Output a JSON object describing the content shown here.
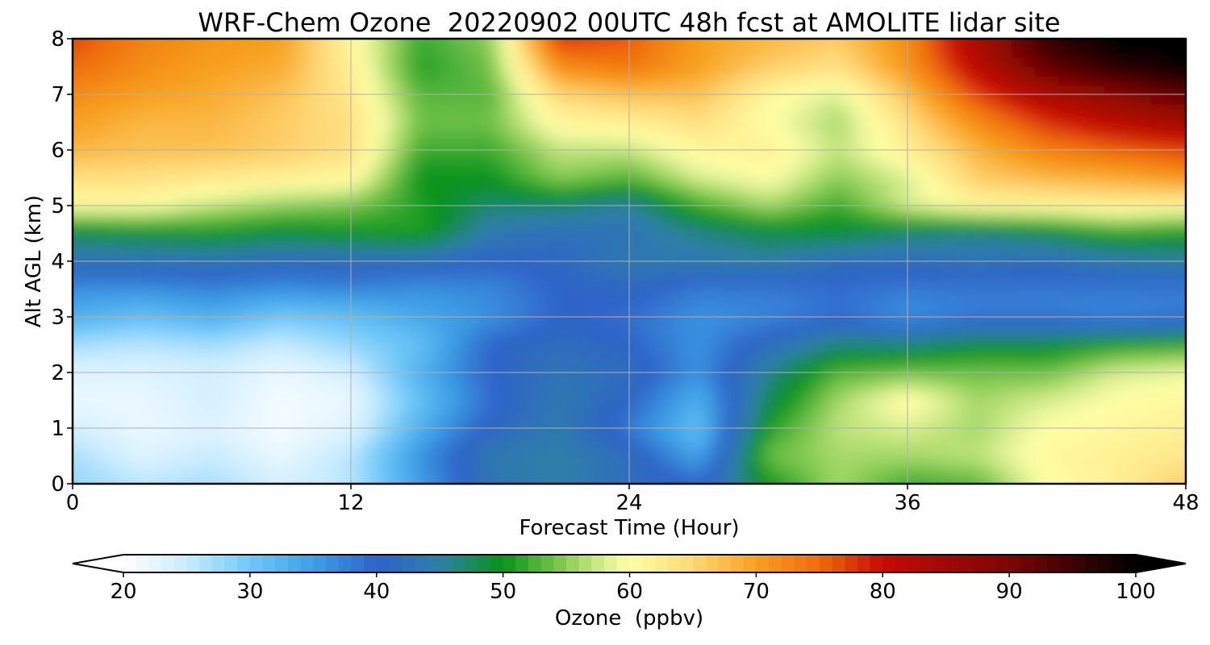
{
  "chart_data": {
    "type": "heatmap",
    "title": "WRF-Chem Ozone  20220902 00UTC 48h fcst at AMOLITE lidar site",
    "xlabel": "Forecast Time (Hour)",
    "ylabel": "Alt AGL (km)",
    "xlim": [
      0,
      48
    ],
    "ylim": [
      0,
      8
    ],
    "xticks": [
      0,
      12,
      24,
      36,
      48
    ],
    "yticks": [
      0,
      1,
      2,
      3,
      4,
      5,
      6,
      7,
      8
    ],
    "grid": true,
    "colorbar": {
      "label": "Ozone  (ppbv)",
      "range": [
        20,
        100
      ],
      "ticks": [
        20,
        30,
        40,
        50,
        60,
        70,
        80,
        90,
        100
      ],
      "extend": "both",
      "stops": [
        {
          "v": 20,
          "c": "#ffffff"
        },
        {
          "v": 25,
          "c": "#c9ecff"
        },
        {
          "v": 30,
          "c": "#6fc8f8"
        },
        {
          "v": 35,
          "c": "#3d9fe6"
        },
        {
          "v": 40,
          "c": "#2e63c8"
        },
        {
          "v": 45,
          "c": "#2f7fa8"
        },
        {
          "v": 50,
          "c": "#07921a"
        },
        {
          "v": 55,
          "c": "#8bcd55"
        },
        {
          "v": 58,
          "c": "#d9ee90"
        },
        {
          "v": 60,
          "c": "#ffffa6"
        },
        {
          "v": 65,
          "c": "#ffd878"
        },
        {
          "v": 70,
          "c": "#f7a01e"
        },
        {
          "v": 75,
          "c": "#f06c0c"
        },
        {
          "v": 80,
          "c": "#c80a05"
        },
        {
          "v": 90,
          "c": "#7a0606"
        },
        {
          "v": 100,
          "c": "#000000"
        }
      ]
    },
    "grid_x": [
      0,
      3,
      6,
      9,
      12,
      15,
      18,
      21,
      24,
      27,
      30,
      33,
      36,
      39,
      42,
      45,
      48
    ],
    "grid_y": [
      0,
      0.5,
      1,
      1.5,
      2,
      2.5,
      3,
      3.5,
      4,
      4.5,
      5,
      5.5,
      6,
      6.5,
      7,
      7.5,
      8
    ],
    "values": [
      [
        28,
        26,
        27,
        24,
        26,
        35,
        43,
        45,
        42,
        40,
        50,
        56,
        52,
        53,
        60,
        62,
        66
      ],
      [
        27,
        23,
        25,
        22,
        26,
        36,
        44,
        45,
        42,
        34,
        54,
        56,
        56,
        57,
        61,
        62,
        63
      ],
      [
        24,
        22,
        23,
        21,
        23,
        33,
        41,
        44,
        38,
        31,
        51,
        57,
        58,
        56,
        60,
        61,
        62
      ],
      [
        22,
        22,
        24,
        21,
        22,
        31,
        39,
        44,
        40,
        33,
        48,
        56,
        61,
        56,
        58,
        60,
        61
      ],
      [
        23,
        23,
        24,
        22,
        24,
        33,
        40,
        43,
        42,
        36,
        46,
        53,
        54,
        54,
        54,
        58,
        59
      ],
      [
        27,
        26,
        27,
        25,
        28,
        31,
        40,
        42,
        40,
        36,
        42,
        47,
        47,
        49,
        49,
        51,
        52
      ],
      [
        33,
        31,
        33,
        30,
        31,
        34,
        36,
        40,
        39,
        36,
        37,
        39,
        36,
        38,
        38,
        37,
        38
      ],
      [
        36,
        36,
        37,
        36,
        37,
        36,
        37,
        40,
        41,
        38,
        38,
        39,
        38,
        38,
        38,
        38,
        38
      ],
      [
        43,
        43,
        43,
        42,
        42,
        42,
        40,
        41,
        44,
        44,
        45,
        42,
        42,
        43,
        42,
        44,
        45
      ],
      [
        48,
        49,
        50,
        49,
        50,
        51,
        44,
        42,
        43,
        46,
        48,
        49,
        47,
        46,
        48,
        51,
        50
      ],
      [
        60,
        60,
        57,
        55,
        54,
        51,
        47,
        47,
        45,
        52,
        56,
        52,
        58,
        61,
        61,
        62,
        61
      ],
      [
        64,
        64,
        63,
        62,
        61,
        50,
        50,
        55,
        53,
        58,
        60,
        55,
        58,
        66,
        68,
        69,
        71
      ],
      [
        68,
        67,
        67,
        66,
        64,
        52,
        52,
        57,
        57,
        61,
        62,
        57,
        62,
        68,
        73,
        75,
        77
      ],
      [
        70,
        68,
        68,
        66,
        64,
        54,
        54,
        61,
        62,
        64,
        60,
        56,
        64,
        72,
        78,
        82,
        85
      ],
      [
        72,
        70,
        69,
        67,
        63,
        53,
        53,
        65,
        67,
        67,
        61,
        58,
        67,
        77,
        84,
        88,
        92
      ],
      [
        75,
        72,
        70,
        69,
        62,
        51,
        54,
        72,
        74,
        70,
        66,
        64,
        71,
        82,
        92,
        97,
        100
      ],
      [
        77,
        73,
        71,
        70,
        61,
        52,
        55,
        78,
        76,
        70,
        68,
        66,
        72,
        84,
        96,
        100,
        100
      ]
    ]
  }
}
